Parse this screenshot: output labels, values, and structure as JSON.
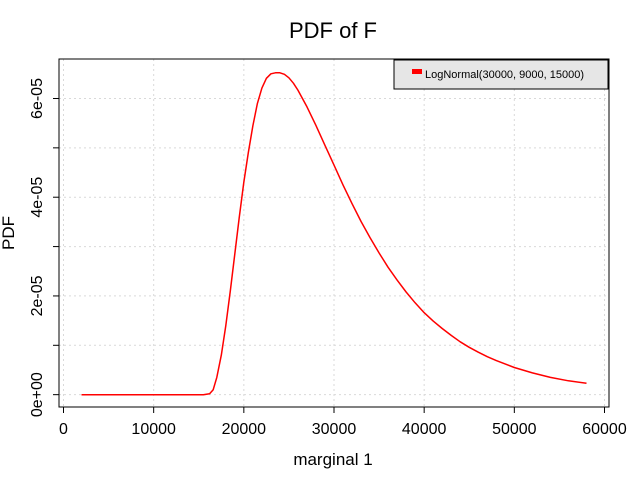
{
  "chart_data": {
    "type": "line",
    "title": "PDF of F",
    "xlabel": "marginal 1",
    "ylabel": "PDF",
    "xlim": [
      -500,
      60500
    ],
    "ylim": [
      -2.5e-06,
      6.8e-05
    ],
    "x_ticks": [
      0,
      10000,
      20000,
      30000,
      40000,
      50000,
      60000
    ],
    "x_tick_labels": [
      "0",
      "10000",
      "20000",
      "30000",
      "40000",
      "50000",
      "60000"
    ],
    "y_ticks": [
      0,
      2e-05,
      4e-05,
      6e-05
    ],
    "y_tick_labels": [
      "0e+00",
      "2e-05",
      "4e-05",
      "6e-05"
    ],
    "grid": true,
    "legend_position": "top-right",
    "series": [
      {
        "name": "LogNormal(30000, 9000, 15000)",
        "color": "#ff0000",
        "x": [
          2000,
          6000,
          10000,
          14000,
          15500,
          16200,
          16600,
          17000,
          17500,
          18000,
          18500,
          19000,
          19500,
          20000,
          20500,
          21000,
          21500,
          22000,
          22500,
          23000,
          23500,
          24000,
          24500,
          25000,
          25500,
          26000,
          27000,
          28000,
          29000,
          30000,
          31000,
          32000,
          33000,
          34000,
          35000,
          36000,
          37000,
          38000,
          39000,
          40000,
          41000,
          42000,
          43000,
          44000,
          45000,
          46000,
          47000,
          48000,
          50000,
          52000,
          54000,
          56000,
          58000
        ],
        "y": [
          0,
          0,
          0,
          0,
          0,
          2e-07,
          1e-06,
          3.5e-06,
          8e-06,
          1.4e-05,
          2.1e-05,
          2.85e-05,
          3.6e-05,
          4.3e-05,
          4.9e-05,
          5.45e-05,
          5.9e-05,
          6.21e-05,
          6.41e-05,
          6.5e-05,
          6.52e-05,
          6.52e-05,
          6.49e-05,
          6.42e-05,
          6.31e-05,
          6.17e-05,
          5.83e-05,
          5.45e-05,
          5.05e-05,
          4.65e-05,
          4.25e-05,
          3.87e-05,
          3.51e-05,
          3.18e-05,
          2.87e-05,
          2.58e-05,
          2.32e-05,
          2.08e-05,
          1.86e-05,
          1.66e-05,
          1.49e-05,
          1.34e-05,
          1.2e-05,
          1.07e-05,
          9.6e-06,
          8.6e-06,
          7.7e-06,
          6.9e-06,
          5.5e-06,
          4.4e-06,
          3.5e-06,
          2.8e-06,
          2.3e-06
        ]
      }
    ]
  }
}
